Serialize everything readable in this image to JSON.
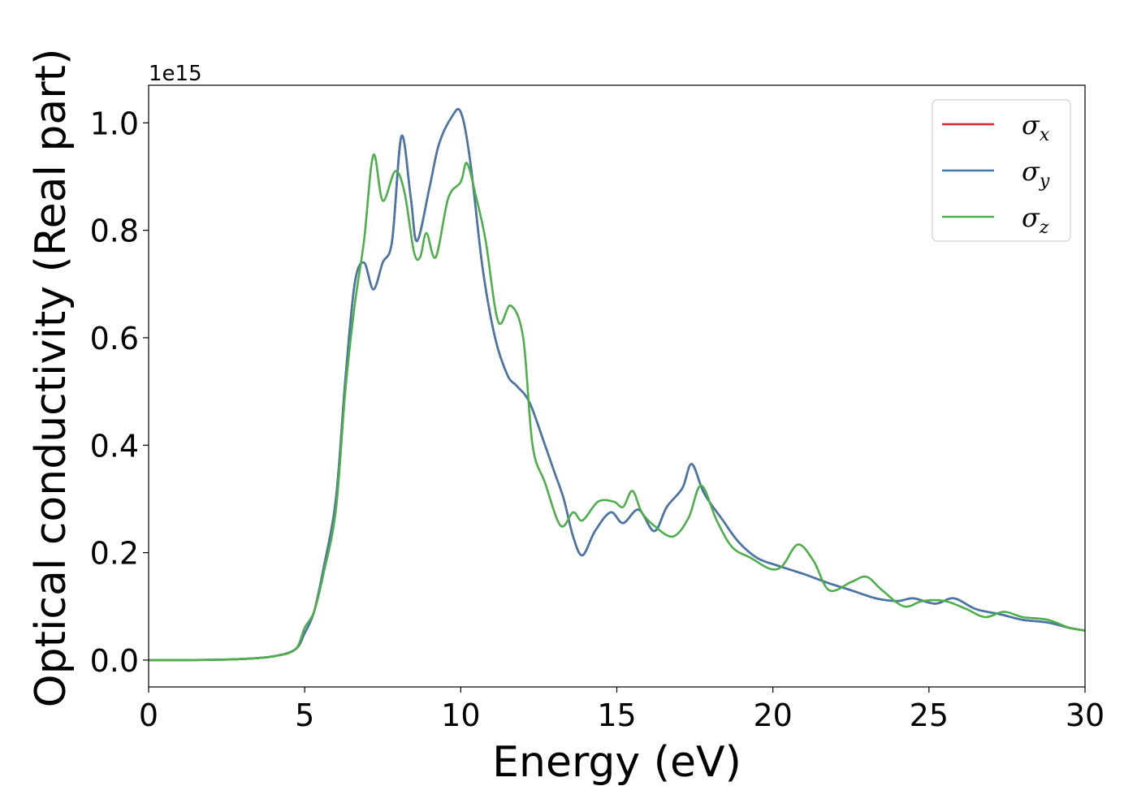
{
  "chart_data": {
    "type": "line",
    "xlabel": "Energy (eV)",
    "ylabel": "Optical conductivity (Real part)",
    "y_offset_text": "1e15",
    "xlim": [
      0,
      30
    ],
    "ylim": [
      -0.05,
      1.07
    ],
    "xticks": [
      0,
      5,
      10,
      15,
      20,
      25,
      30
    ],
    "xtick_labels": [
      "0",
      "5",
      "10",
      "15",
      "20",
      "25",
      "30"
    ],
    "yticks": [
      0.0,
      0.2,
      0.4,
      0.6,
      0.8,
      1.0
    ],
    "ytick_labels": [
      "0.0",
      "0.2",
      "0.4",
      "0.6",
      "0.8",
      "1.0"
    ],
    "grid": false,
    "legend_position": "top-right",
    "series": [
      {
        "name": "σ",
        "sub": "x",
        "color": "#d62728",
        "points": [
          [
            0,
            0.0
          ],
          [
            1,
            0.0
          ],
          [
            2,
            0.0005
          ],
          [
            3,
            0.002
          ],
          [
            4,
            0.007
          ],
          [
            4.7,
            0.02
          ],
          [
            5.0,
            0.05
          ],
          [
            5.3,
            0.09
          ],
          [
            5.6,
            0.17
          ],
          [
            6.0,
            0.3
          ],
          [
            6.3,
            0.52
          ],
          [
            6.6,
            0.7
          ],
          [
            6.9,
            0.74
          ],
          [
            7.2,
            0.69
          ],
          [
            7.5,
            0.74
          ],
          [
            7.8,
            0.78
          ],
          [
            8.1,
            0.975
          ],
          [
            8.4,
            0.86
          ],
          [
            8.6,
            0.78
          ],
          [
            9.0,
            0.88
          ],
          [
            9.3,
            0.96
          ],
          [
            9.7,
            1.01
          ],
          [
            10.0,
            1.02
          ],
          [
            10.3,
            0.93
          ],
          [
            10.7,
            0.73
          ],
          [
            11.1,
            0.6
          ],
          [
            11.5,
            0.53
          ],
          [
            11.8,
            0.51
          ],
          [
            12.2,
            0.48
          ],
          [
            12.7,
            0.4
          ],
          [
            13.0,
            0.35
          ],
          [
            13.3,
            0.3
          ],
          [
            13.6,
            0.23
          ],
          [
            13.9,
            0.195
          ],
          [
            14.3,
            0.24
          ],
          [
            14.8,
            0.275
          ],
          [
            15.2,
            0.255
          ],
          [
            15.7,
            0.28
          ],
          [
            16.2,
            0.24
          ],
          [
            16.6,
            0.285
          ],
          [
            17.1,
            0.32
          ],
          [
            17.4,
            0.365
          ],
          [
            17.8,
            0.31
          ],
          [
            18.4,
            0.26
          ],
          [
            18.9,
            0.22
          ],
          [
            19.5,
            0.19
          ],
          [
            20.2,
            0.175
          ],
          [
            21.0,
            0.16
          ],
          [
            21.7,
            0.145
          ],
          [
            22.5,
            0.13
          ],
          [
            23.3,
            0.115
          ],
          [
            24.0,
            0.11
          ],
          [
            24.5,
            0.115
          ],
          [
            25.2,
            0.105
          ],
          [
            25.8,
            0.115
          ],
          [
            26.5,
            0.095
          ],
          [
            27.3,
            0.085
          ],
          [
            28.0,
            0.075
          ],
          [
            28.8,
            0.07
          ],
          [
            29.5,
            0.06
          ],
          [
            30,
            0.055
          ]
        ]
      },
      {
        "name": "σ",
        "sub": "y",
        "color": "#4477aa",
        "points": [
          [
            0,
            0.0
          ],
          [
            1,
            0.0
          ],
          [
            2,
            0.0005
          ],
          [
            3,
            0.002
          ],
          [
            4,
            0.007
          ],
          [
            4.7,
            0.02
          ],
          [
            5.0,
            0.05
          ],
          [
            5.3,
            0.09
          ],
          [
            5.6,
            0.17
          ],
          [
            6.0,
            0.3
          ],
          [
            6.3,
            0.52
          ],
          [
            6.6,
            0.7
          ],
          [
            6.9,
            0.74
          ],
          [
            7.2,
            0.69
          ],
          [
            7.5,
            0.74
          ],
          [
            7.8,
            0.78
          ],
          [
            8.1,
            0.975
          ],
          [
            8.4,
            0.86
          ],
          [
            8.6,
            0.78
          ],
          [
            9.0,
            0.88
          ],
          [
            9.3,
            0.96
          ],
          [
            9.7,
            1.01
          ],
          [
            10.0,
            1.02
          ],
          [
            10.3,
            0.93
          ],
          [
            10.7,
            0.73
          ],
          [
            11.1,
            0.6
          ],
          [
            11.5,
            0.53
          ],
          [
            11.8,
            0.51
          ],
          [
            12.2,
            0.48
          ],
          [
            12.7,
            0.4
          ],
          [
            13.0,
            0.35
          ],
          [
            13.3,
            0.3
          ],
          [
            13.6,
            0.23
          ],
          [
            13.9,
            0.195
          ],
          [
            14.3,
            0.24
          ],
          [
            14.8,
            0.275
          ],
          [
            15.2,
            0.255
          ],
          [
            15.7,
            0.28
          ],
          [
            16.2,
            0.24
          ],
          [
            16.6,
            0.285
          ],
          [
            17.1,
            0.32
          ],
          [
            17.4,
            0.365
          ],
          [
            17.8,
            0.31
          ],
          [
            18.4,
            0.26
          ],
          [
            18.9,
            0.22
          ],
          [
            19.5,
            0.19
          ],
          [
            20.2,
            0.175
          ],
          [
            21.0,
            0.16
          ],
          [
            21.7,
            0.145
          ],
          [
            22.5,
            0.13
          ],
          [
            23.3,
            0.115
          ],
          [
            24.0,
            0.11
          ],
          [
            24.5,
            0.115
          ],
          [
            25.2,
            0.105
          ],
          [
            25.8,
            0.115
          ],
          [
            26.5,
            0.095
          ],
          [
            27.3,
            0.085
          ],
          [
            28.0,
            0.075
          ],
          [
            28.8,
            0.07
          ],
          [
            29.5,
            0.06
          ],
          [
            30,
            0.055
          ]
        ]
      },
      {
        "name": "σ",
        "sub": "z",
        "color": "#4daf4a",
        "points": [
          [
            0,
            0.0
          ],
          [
            1,
            0.0
          ],
          [
            2,
            0.0005
          ],
          [
            3,
            0.002
          ],
          [
            4,
            0.007
          ],
          [
            4.7,
            0.02
          ],
          [
            5.0,
            0.06
          ],
          [
            5.3,
            0.09
          ],
          [
            5.6,
            0.16
          ],
          [
            6.0,
            0.28
          ],
          [
            6.3,
            0.5
          ],
          [
            6.6,
            0.66
          ],
          [
            6.9,
            0.78
          ],
          [
            7.2,
            0.94
          ],
          [
            7.5,
            0.855
          ],
          [
            7.9,
            0.91
          ],
          [
            8.2,
            0.87
          ],
          [
            8.5,
            0.76
          ],
          [
            8.7,
            0.75
          ],
          [
            8.9,
            0.795
          ],
          [
            9.2,
            0.75
          ],
          [
            9.6,
            0.86
          ],
          [
            10.0,
            0.89
          ],
          [
            10.2,
            0.925
          ],
          [
            10.5,
            0.86
          ],
          [
            10.8,
            0.78
          ],
          [
            11.2,
            0.63
          ],
          [
            11.6,
            0.66
          ],
          [
            12.0,
            0.6
          ],
          [
            12.3,
            0.4
          ],
          [
            12.7,
            0.33
          ],
          [
            13.2,
            0.25
          ],
          [
            13.6,
            0.275
          ],
          [
            13.9,
            0.26
          ],
          [
            14.4,
            0.295
          ],
          [
            14.9,
            0.295
          ],
          [
            15.2,
            0.285
          ],
          [
            15.5,
            0.315
          ],
          [
            15.8,
            0.275
          ],
          [
            16.2,
            0.25
          ],
          [
            16.8,
            0.23
          ],
          [
            17.3,
            0.265
          ],
          [
            17.7,
            0.325
          ],
          [
            18.2,
            0.26
          ],
          [
            18.7,
            0.21
          ],
          [
            19.3,
            0.19
          ],
          [
            19.9,
            0.17
          ],
          [
            20.3,
            0.175
          ],
          [
            20.8,
            0.215
          ],
          [
            21.3,
            0.185
          ],
          [
            21.8,
            0.13
          ],
          [
            22.5,
            0.145
          ],
          [
            23.0,
            0.155
          ],
          [
            23.5,
            0.13
          ],
          [
            24.2,
            0.1
          ],
          [
            24.8,
            0.11
          ],
          [
            25.5,
            0.11
          ],
          [
            26.2,
            0.095
          ],
          [
            26.8,
            0.08
          ],
          [
            27.4,
            0.09
          ],
          [
            28.0,
            0.08
          ],
          [
            28.8,
            0.075
          ],
          [
            29.5,
            0.06
          ],
          [
            30,
            0.055
          ]
        ]
      }
    ]
  }
}
